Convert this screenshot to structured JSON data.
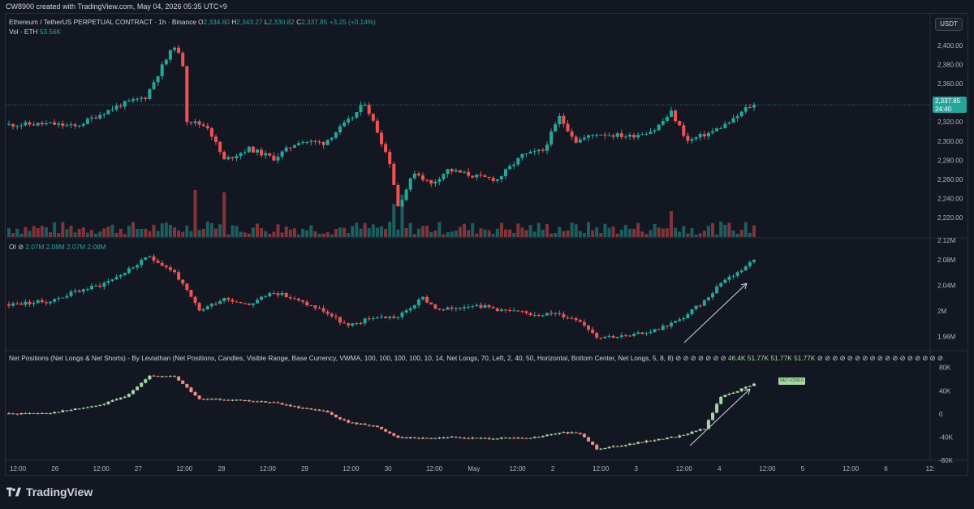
{
  "header": {
    "attribution": "CW8900 created with TradingView.com, May 04, 2026 05:35 UTC+9"
  },
  "legend": {
    "symbol": "Ethereum / TetherUS PERPETUAL CONTRACT · 1h · Binance",
    "open": "2,334.60",
    "high": "2,343.27",
    "low": "2,330.82",
    "close": "2,337.85",
    "change": "+3.25 (+0.14%)",
    "vol_label": "Vol · ETH",
    "vol_value": "53.56K",
    "oi_label": "OI",
    "oi_values": "2.07M  2.08M  2.07M  2.08M",
    "np_label": "Net Positions (Net Longs & Net Shorts) - By Leviathan (Net Positions, Candles, Visible Range, Base Currency, VWMA, 100, 100, 100, 100, 10, 14, Net Longs, 70, Left, 2, 40, 50, Horizontal, Bottom Center, Net Longs, 5, 8, 8)",
    "np_values": "46.4K  51.77K  51.77K  51.77K"
  },
  "currency_button": "USDT",
  "last_price_tag": {
    "price": "2,337.85",
    "countdown": "24:40"
  },
  "net_longs_tag": "NET LONGS",
  "logo_text": "TradingView",
  "colors": {
    "up": "#26a69a",
    "down": "#ef5350",
    "np_up": "#a5d6a7",
    "np_down": "#f28b82",
    "background": "#131722",
    "grid": "#1e222d"
  },
  "chart_data": [
    {
      "type": "candlestick",
      "title": "Ethereum / TetherUS PERPETUAL CONTRACT · 1h · Binance",
      "ylabel": "USDT",
      "ylim": [
        2210,
        2410
      ],
      "y_ticks": [
        "2,400.00",
        "2,380.00",
        "2,360.00",
        "2,340.00",
        "2,320.00",
        "2,300.00",
        "2,280.00",
        "2,260.00",
        "2,240.00",
        "2,220.00"
      ],
      "x_ticks": [
        "12:00",
        "26",
        "12:00",
        "27",
        "12:00",
        "28",
        "12:00",
        "29",
        "12:00",
        "30",
        "12:00",
        "May",
        "12:00",
        "2",
        "12:00",
        "3",
        "12:00",
        "4",
        "12:00",
        "5",
        "12:00",
        "6",
        "12:"
      ],
      "close_anchors": [
        [
          0,
          2317
        ],
        [
          10,
          2318
        ],
        [
          16,
          2315
        ],
        [
          22,
          2328
        ],
        [
          27,
          2338
        ],
        [
          33,
          2346
        ],
        [
          37,
          2378
        ],
        [
          40,
          2400
        ],
        [
          42,
          2380
        ],
        [
          43,
          2322
        ],
        [
          48,
          2315
        ],
        [
          52,
          2280
        ],
        [
          58,
          2292
        ],
        [
          64,
          2282
        ],
        [
          70,
          2300
        ],
        [
          76,
          2298
        ],
        [
          83,
          2325
        ],
        [
          86,
          2340
        ],
        [
          89,
          2310
        ],
        [
          92,
          2278
        ],
        [
          94,
          2232
        ],
        [
          98,
          2268
        ],
        [
          102,
          2255
        ],
        [
          106,
          2270
        ],
        [
          114,
          2262
        ],
        [
          118,
          2260
        ],
        [
          124,
          2285
        ],
        [
          129,
          2290
        ],
        [
          133,
          2325
        ],
        [
          137,
          2300
        ],
        [
          142,
          2308
        ],
        [
          150,
          2305
        ],
        [
          156,
          2312
        ],
        [
          160,
          2330
        ],
        [
          164,
          2300
        ],
        [
          170,
          2310
        ],
        [
          175,
          2322
        ],
        [
          178,
          2334
        ],
        [
          180,
          2338
        ]
      ],
      "last": 2337.85
    },
    {
      "type": "bar",
      "title": "Vol · ETH",
      "last": "53.56K",
      "spikes": [
        [
          45,
          1.0
        ],
        [
          52,
          0.95
        ],
        [
          95,
          0.9
        ],
        [
          93,
          0.7
        ],
        [
          160,
          0.55
        ]
      ]
    },
    {
      "type": "candlestick",
      "title": "OI",
      "ylim": [
        1.94,
        2.1
      ],
      "y_ticks": [
        "2.12M",
        "2.08M",
        "2.04M",
        "2M",
        "1.96M"
      ],
      "close_anchors": [
        [
          0,
          2.01
        ],
        [
          10,
          2.015
        ],
        [
          16,
          2.03
        ],
        [
          22,
          2.04
        ],
        [
          28,
          2.06
        ],
        [
          34,
          2.085
        ],
        [
          40,
          2.06
        ],
        [
          46,
          2.0
        ],
        [
          52,
          2.02
        ],
        [
          58,
          2.01
        ],
        [
          64,
          2.03
        ],
        [
          70,
          2.015
        ],
        [
          76,
          2.0
        ],
        [
          82,
          1.975
        ],
        [
          88,
          1.99
        ],
        [
          94,
          1.99
        ],
        [
          100,
          2.02
        ],
        [
          104,
          2.0
        ],
        [
          112,
          2.01
        ],
        [
          120,
          2.0
        ],
        [
          126,
          1.995
        ],
        [
          132,
          1.995
        ],
        [
          138,
          1.985
        ],
        [
          142,
          1.96
        ],
        [
          150,
          1.96
        ],
        [
          156,
          1.97
        ],
        [
          162,
          1.985
        ],
        [
          168,
          2.015
        ],
        [
          172,
          2.045
        ],
        [
          176,
          2.06
        ],
        [
          180,
          2.08
        ]
      ],
      "last": "2.08M"
    },
    {
      "type": "candlestick",
      "title": "Net Positions (Net Longs & Net Shorts) - By Leviathan",
      "ylim": [
        -80,
        88
      ],
      "y_ticks": [
        "80K",
        "40K",
        "0",
        "-40K",
        "-80K"
      ],
      "close_anchors": [
        [
          0,
          0
        ],
        [
          10,
          2
        ],
        [
          16,
          8
        ],
        [
          22,
          15
        ],
        [
          28,
          30
        ],
        [
          34,
          65
        ],
        [
          40,
          65
        ],
        [
          46,
          25
        ],
        [
          52,
          25
        ],
        [
          58,
          22
        ],
        [
          64,
          20
        ],
        [
          70,
          10
        ],
        [
          76,
          5
        ],
        [
          82,
          -15
        ],
        [
          88,
          -20
        ],
        [
          94,
          -40
        ],
        [
          100,
          -42
        ],
        [
          106,
          -40
        ],
        [
          112,
          -42
        ],
        [
          118,
          -42
        ],
        [
          126,
          -42
        ],
        [
          134,
          -32
        ],
        [
          138,
          -34
        ],
        [
          142,
          -60
        ],
        [
          150,
          -52
        ],
        [
          156,
          -45
        ],
        [
          162,
          -38
        ],
        [
          168,
          -25
        ],
        [
          172,
          30
        ],
        [
          176,
          40
        ],
        [
          180,
          51.77
        ]
      ],
      "last": "51.77K"
    }
  ]
}
